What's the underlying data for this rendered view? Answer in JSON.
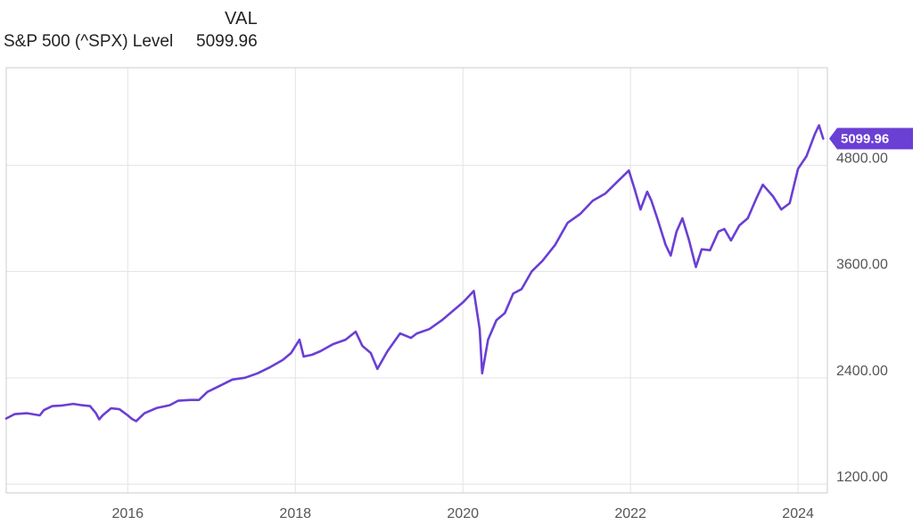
{
  "legend": {
    "column_title": "VAL",
    "series_name": "S&P 500 (^SPX) Level",
    "series_value": "5099.96"
  },
  "colors": {
    "line": "#6a3fd4",
    "label_bg": "#6a3fd4",
    "grid": "#e3e3e3",
    "frame": "#cccccc"
  },
  "chart_data": {
    "type": "line",
    "title": "",
    "xlabel": "",
    "ylabel": "",
    "grid": true,
    "y_axis_side": "right",
    "xlim": [
      2014.55,
      2024.35
    ],
    "ylim": [
      1100,
      5900
    ],
    "x_ticks": [
      2016,
      2018,
      2020,
      2022,
      2024
    ],
    "x_tick_labels": [
      "2016",
      "2018",
      "2020",
      "2022",
      "2024"
    ],
    "y_ticks": [
      1200,
      2400,
      3600,
      4800
    ],
    "y_tick_labels": [
      "1200.00",
      "2400.00",
      "3600.00",
      "4800.00"
    ],
    "last_value_label": "5099.96",
    "series": [
      {
        "name": "S&P 500 (^SPX) Level",
        "x": [
          2014.55,
          2014.65,
          2014.8,
          2014.95,
          2015.0,
          2015.1,
          2015.2,
          2015.35,
          2015.45,
          2015.55,
          2015.62,
          2015.66,
          2015.7,
          2015.8,
          2015.9,
          2016.0,
          2016.05,
          2016.1,
          2016.2,
          2016.35,
          2016.5,
          2016.6,
          2016.75,
          2016.85,
          2016.95,
          2017.1,
          2017.25,
          2017.4,
          2017.55,
          2017.7,
          2017.85,
          2017.95,
          2018.05,
          2018.1,
          2018.2,
          2018.3,
          2018.45,
          2018.6,
          2018.72,
          2018.8,
          2018.9,
          2018.98,
          2019.1,
          2019.25,
          2019.38,
          2019.45,
          2019.6,
          2019.75,
          2019.9,
          2020.0,
          2020.05,
          2020.13,
          2020.2,
          2020.23,
          2020.3,
          2020.4,
          2020.5,
          2020.6,
          2020.7,
          2020.82,
          2020.95,
          2021.1,
          2021.25,
          2021.4,
          2021.55,
          2021.7,
          2021.85,
          2021.98,
          2022.05,
          2022.12,
          2022.2,
          2022.25,
          2022.32,
          2022.42,
          2022.48,
          2022.55,
          2022.62,
          2022.7,
          2022.78,
          2022.85,
          2022.95,
          2023.05,
          2023.12,
          2023.2,
          2023.3,
          2023.4,
          2023.5,
          2023.58,
          2023.7,
          2023.8,
          2023.9,
          2024.0,
          2024.1,
          2024.2,
          2024.25,
          2024.3
        ],
        "y": [
          1940,
          1990,
          2000,
          1975,
          2035,
          2080,
          2085,
          2105,
          2090,
          2080,
          2000,
          1930,
          1975,
          2055,
          2045,
          1975,
          1935,
          1910,
          2000,
          2060,
          2090,
          2140,
          2150,
          2150,
          2240,
          2310,
          2380,
          2400,
          2450,
          2520,
          2600,
          2680,
          2830,
          2640,
          2660,
          2700,
          2780,
          2830,
          2920,
          2760,
          2680,
          2500,
          2700,
          2900,
          2850,
          2900,
          2950,
          3050,
          3170,
          3250,
          3300,
          3380,
          2950,
          2450,
          2830,
          3050,
          3130,
          3350,
          3400,
          3600,
          3720,
          3900,
          4150,
          4250,
          4400,
          4480,
          4620,
          4740,
          4530,
          4300,
          4500,
          4400,
          4200,
          3900,
          3780,
          4050,
          4200,
          3950,
          3650,
          3850,
          3840,
          4050,
          4080,
          3950,
          4120,
          4200,
          4420,
          4580,
          4450,
          4300,
          4370,
          4760,
          4900,
          5150,
          5250,
          5099.96
        ]
      }
    ]
  }
}
